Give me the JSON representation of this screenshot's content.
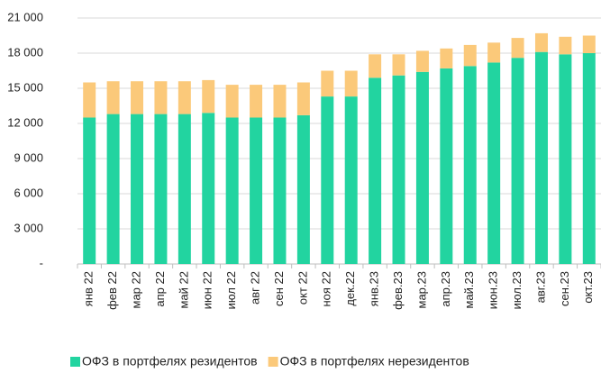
{
  "chart_data": {
    "type": "stacked_bar",
    "categories": [
      "янв 22",
      "фев 22",
      "мар 22",
      "апр 22",
      "май 22",
      "июн 22",
      "июл 22",
      "авг 22",
      "сен 22",
      "окт 22",
      "ноя 22",
      "дек.22",
      "янв.23",
      "фев.23",
      "мар.23",
      "апр.23",
      "май.23",
      "июн.23",
      "июл.23",
      "авг.23",
      "сен.23",
      "окт.23"
    ],
    "series": [
      {
        "name": "ОФЗ в портфелях резидентов",
        "color": "#22d4a0",
        "values": [
          12500,
          12800,
          12800,
          12800,
          12800,
          12900,
          12500,
          12500,
          12500,
          12700,
          14300,
          14300,
          15900,
          16100,
          16400,
          16700,
          16900,
          17200,
          17600,
          18100,
          17900,
          18000
        ]
      },
      {
        "name": "ОФЗ в портфелях нерезидентов",
        "color": "#fbc97a",
        "values": [
          3000,
          2800,
          2800,
          2800,
          2800,
          2800,
          2800,
          2800,
          2800,
          2800,
          2200,
          2200,
          2000,
          1800,
          1800,
          1700,
          1800,
          1700,
          1700,
          1600,
          1500,
          1500
        ]
      }
    ],
    "ylim": [
      0,
      21000
    ],
    "yticks": [
      {
        "value": 0,
        "label": "-"
      },
      {
        "value": 3000,
        "label": "3 000"
      },
      {
        "value": 6000,
        "label": "6 000"
      },
      {
        "value": 9000,
        "label": "9 000"
      },
      {
        "value": 12000,
        "label": "12 000"
      },
      {
        "value": 15000,
        "label": "15 000"
      },
      {
        "value": 18000,
        "label": "18 000"
      },
      {
        "value": 21000,
        "label": "21 000"
      }
    ],
    "grid": true,
    "legend": "bottom"
  }
}
